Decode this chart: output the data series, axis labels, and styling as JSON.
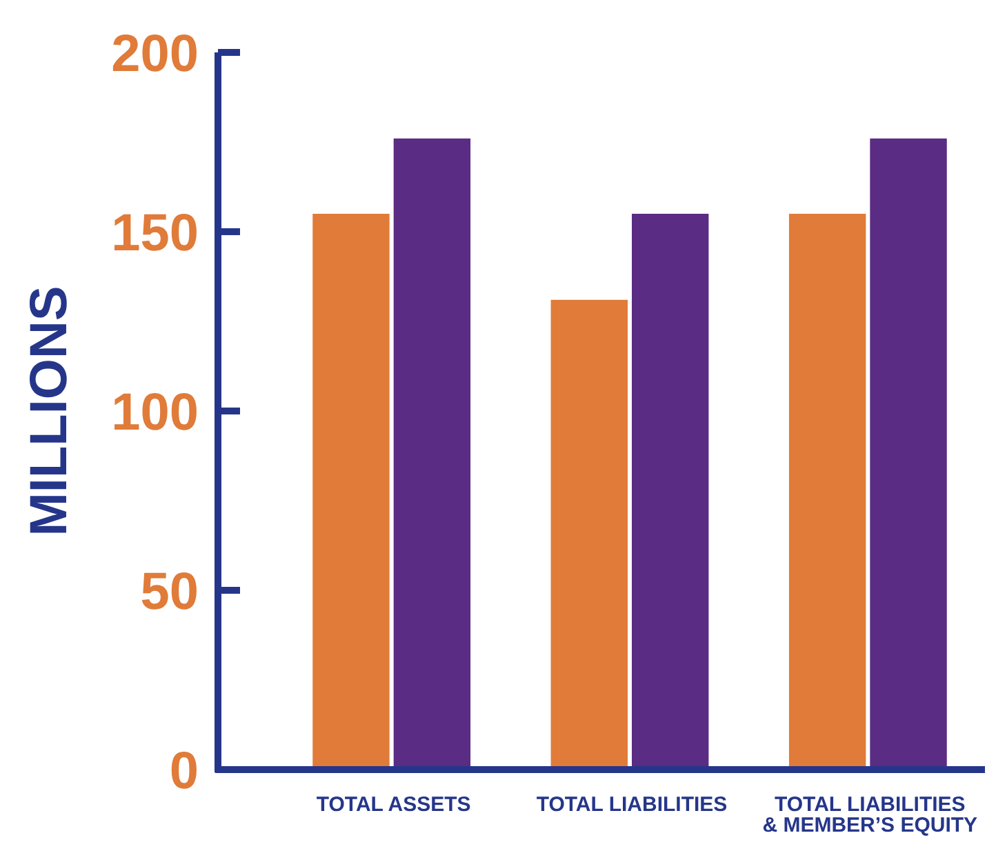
{
  "chart_data": {
    "type": "bar",
    "ylabel": "MILLIONS",
    "categories": [
      "TOTAL ASSETS",
      "TOTAL LIABILITIES",
      "TOTAL LIABILITIES & MEMBER’S EQUITY"
    ],
    "series": [
      {
        "color": "#e07b39",
        "values": [
          155,
          131,
          155
        ]
      },
      {
        "color": "#5b2c83",
        "values": [
          176,
          155,
          176
        ]
      }
    ],
    "ylim": [
      0,
      200
    ],
    "yticks": [
      0,
      50,
      100,
      150,
      200
    ]
  }
}
